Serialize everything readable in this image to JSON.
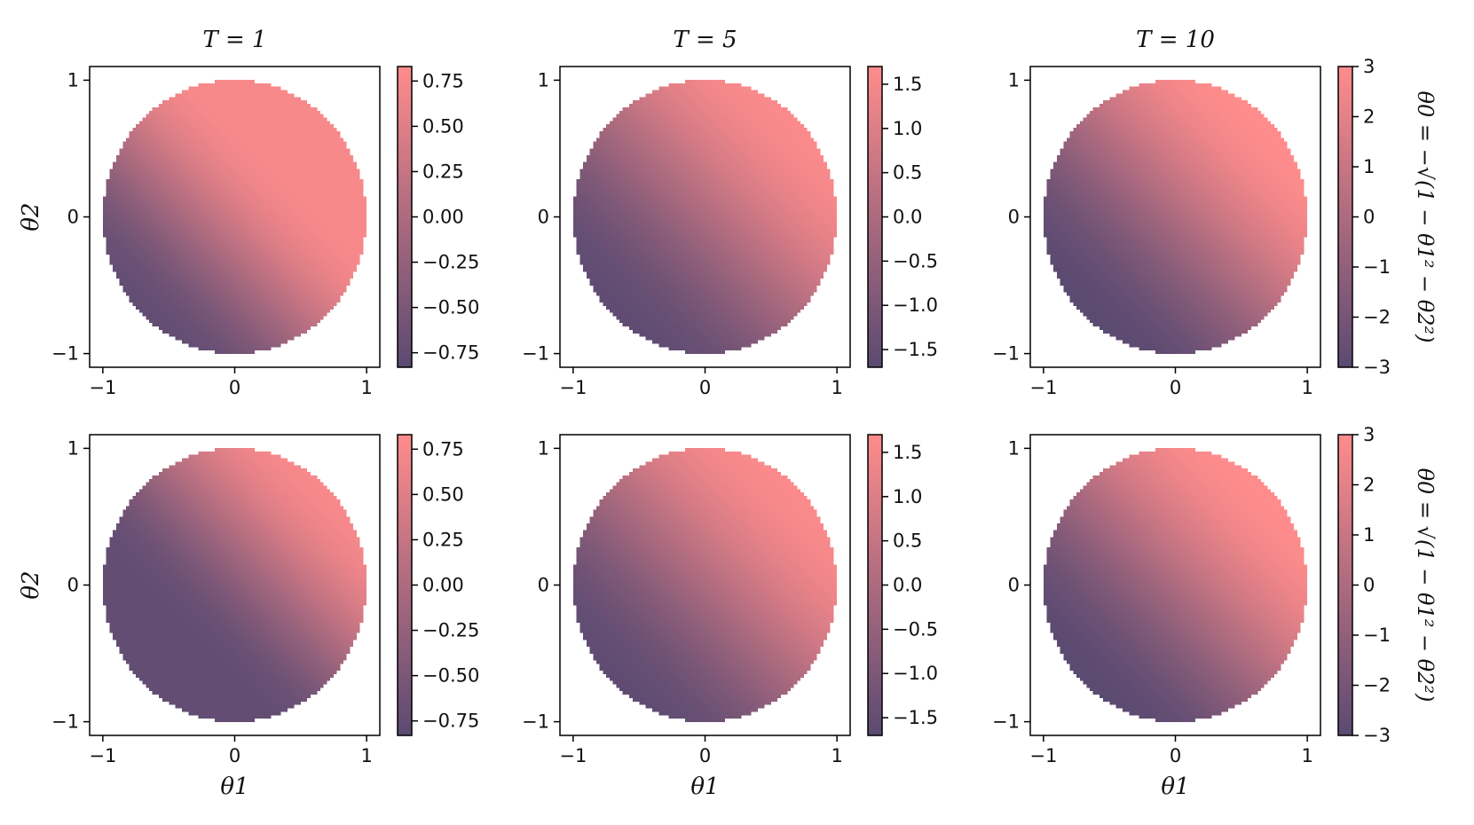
{
  "figure": {
    "colors": {
      "low": "#5b4a72",
      "high": "#ff8c8c",
      "axis": "#000000",
      "background": "#ffffff"
    }
  },
  "chart_data": [
    {
      "type": "heatmap",
      "panel": "row1-col1",
      "title": "T = 1",
      "xlabel": "",
      "ylabel": "θ2",
      "xlim": [
        -1.1,
        1.1
      ],
      "ylim": [
        -1.1,
        1.1
      ],
      "xticks": [
        -1,
        0,
        1
      ],
      "yticks": [
        -1,
        0,
        1
      ],
      "domain": "unit disk θ1² + θ2² ≤ 1",
      "colorbar": {
        "range": [
          -0.83,
          0.83
        ],
        "ticks": [
          -0.75,
          -0.5,
          -0.25,
          0.0,
          0.25,
          0.5,
          0.75
        ],
        "tick_labels": [
          "−0.75",
          "−0.50",
          "−0.25",
          "0.00",
          "0.25",
          "0.50",
          "0.75"
        ]
      },
      "peak": {
        "theta1": 0.35,
        "theta2": 0.35,
        "value": 0.75
      },
      "trough": {
        "theta1": -0.7,
        "theta2": -0.7,
        "value": -0.75
      }
    },
    {
      "type": "heatmap",
      "panel": "row1-col2",
      "title": "T = 5",
      "xlabel": "",
      "ylabel": "",
      "xlim": [
        -1.1,
        1.1
      ],
      "ylim": [
        -1.1,
        1.1
      ],
      "xticks": [
        -1,
        0,
        1
      ],
      "yticks": [
        -1,
        0,
        1
      ],
      "colorbar": {
        "range": [
          -1.7,
          1.7
        ],
        "ticks": [
          -1.5,
          -1.0,
          -0.5,
          0.0,
          0.5,
          1.0,
          1.5
        ],
        "tick_labels": [
          "−1.5",
          "−1.0",
          "−0.5",
          "0.0",
          "0.5",
          "1.0",
          "1.5"
        ]
      },
      "peak": {
        "theta1": 0.7,
        "theta2": 0.7,
        "value": 1.6
      },
      "trough": {
        "theta1": -0.7,
        "theta2": -0.7,
        "value": -1.6
      }
    },
    {
      "type": "heatmap",
      "panel": "row1-col3",
      "title": "T = 10",
      "xlabel": "",
      "ylabel": "",
      "xlim": [
        -1.1,
        1.1
      ],
      "ylim": [
        -1.1,
        1.1
      ],
      "xticks": [
        -1,
        0,
        1
      ],
      "yticks": [
        -1,
        0,
        1
      ],
      "colorbar": {
        "range": [
          -3,
          3
        ],
        "ticks": [
          -3,
          -2,
          -1,
          0,
          1,
          2,
          3
        ],
        "tick_labels": [
          "−3",
          "−2",
          "−1",
          "0",
          "1",
          "2",
          "3"
        ]
      },
      "row_label": "θ0 = −√(1 − θ1² − θ2²)",
      "peak": {
        "theta1": 0.7,
        "theta2": 0.7,
        "value": 3
      },
      "trough": {
        "theta1": -0.7,
        "theta2": -0.7,
        "value": -3
      }
    },
    {
      "type": "heatmap",
      "panel": "row2-col1",
      "title": "",
      "xlabel": "θ1",
      "ylabel": "θ2",
      "xlim": [
        -1.1,
        1.1
      ],
      "ylim": [
        -1.1,
        1.1
      ],
      "xticks": [
        -1,
        0,
        1
      ],
      "yticks": [
        -1,
        0,
        1
      ],
      "colorbar": {
        "range": [
          -0.83,
          0.83
        ],
        "ticks": [
          -0.75,
          -0.5,
          -0.25,
          0.0,
          0.25,
          0.5,
          0.75
        ],
        "tick_labels": [
          "−0.75",
          "−0.50",
          "−0.25",
          "0.00",
          "0.25",
          "0.50",
          "0.75"
        ]
      },
      "peak": {
        "theta1": 0.7,
        "theta2": 0.7,
        "value": 0.75
      },
      "trough": {
        "theta1": -0.35,
        "theta2": -0.35,
        "value": -0.75
      }
    },
    {
      "type": "heatmap",
      "panel": "row2-col2",
      "title": "",
      "xlabel": "θ1",
      "ylabel": "",
      "xlim": [
        -1.1,
        1.1
      ],
      "ylim": [
        -1.1,
        1.1
      ],
      "xticks": [
        -1,
        0,
        1
      ],
      "yticks": [
        -1,
        0,
        1
      ],
      "colorbar": {
        "range": [
          -1.7,
          1.7
        ],
        "ticks": [
          -1.5,
          -1.0,
          -0.5,
          0.0,
          0.5,
          1.0,
          1.5
        ],
        "tick_labels": [
          "−1.5",
          "−1.0",
          "−0.5",
          "0.0",
          "0.5",
          "1.0",
          "1.5"
        ]
      },
      "peak": {
        "theta1": 0.7,
        "theta2": 0.7,
        "value": 1.6
      },
      "trough": {
        "theta1": -0.7,
        "theta2": -0.7,
        "value": -1.6
      }
    },
    {
      "type": "heatmap",
      "panel": "row2-col3",
      "title": "",
      "xlabel": "θ1",
      "ylabel": "",
      "xlim": [
        -1.1,
        1.1
      ],
      "ylim": [
        -1.1,
        1.1
      ],
      "xticks": [
        -1,
        0,
        1
      ],
      "yticks": [
        -1,
        0,
        1
      ],
      "colorbar": {
        "range": [
          -3,
          3
        ],
        "ticks": [
          -3,
          -2,
          -1,
          0,
          1,
          2,
          3
        ],
        "tick_labels": [
          "−3",
          "−2",
          "−1",
          "0",
          "1",
          "2",
          "3"
        ]
      },
      "row_label": "θ0 = √(1 − θ1² − θ2²)",
      "peak": {
        "theta1": 0.7,
        "theta2": 0.7,
        "value": 3
      },
      "trough": {
        "theta1": -0.7,
        "theta2": -0.7,
        "value": -3
      }
    }
  ]
}
